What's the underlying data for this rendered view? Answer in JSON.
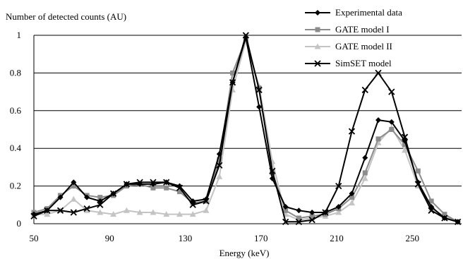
{
  "chart_data": {
    "type": "line",
    "title": "",
    "ylabel": "Number of detected counts (AU)",
    "xlabel": "Energy (keV)",
    "xlim": [
      50,
      276
    ],
    "ylim": [
      0,
      1
    ],
    "xticks": [
      {
        "value": 50,
        "label": "50"
      },
      {
        "value": 90,
        "label": "90"
      },
      {
        "value": 130,
        "label": "130"
      },
      {
        "value": 170,
        "label": "170"
      },
      {
        "value": 210,
        "label": "210"
      },
      {
        "value": 250,
        "label": "250"
      }
    ],
    "yticks": [
      {
        "value": 0,
        "label": "0"
      },
      {
        "value": 0.2,
        "label": "0.2"
      },
      {
        "value": 0.4,
        "label": "0.4"
      },
      {
        "value": 0.6,
        "label": "0.6"
      },
      {
        "value": 0.8,
        "label": "0.8"
      },
      {
        "value": 1,
        "label": "1"
      }
    ],
    "grid": "horizontal",
    "legend_position": "top-right",
    "series": [
      {
        "name": "Experimental data",
        "color": "#000000",
        "marker": "diamond",
        "stroke_width": 2,
        "x": [
          50,
          57,
          64,
          71,
          78,
          85,
          92,
          99,
          106,
          113,
          120,
          127,
          134,
          141,
          148,
          155,
          162,
          169,
          176,
          183,
          190,
          197,
          204,
          211,
          218,
          225,
          232,
          239,
          246,
          253,
          260,
          267,
          274
        ],
        "y": [
          0.05,
          0.07,
          0.14,
          0.22,
          0.14,
          0.12,
          0.16,
          0.21,
          0.21,
          0.21,
          0.22,
          0.2,
          0.12,
          0.13,
          0.37,
          0.75,
          0.99,
          0.62,
          0.24,
          0.09,
          0.07,
          0.06,
          0.06,
          0.09,
          0.16,
          0.35,
          0.55,
          0.54,
          0.44,
          0.22,
          0.09,
          0.03,
          0.01
        ]
      },
      {
        "name": "GATE model I",
        "color": "#8c8c8c",
        "marker": "square",
        "stroke_width": 2,
        "x": [
          50,
          57,
          64,
          71,
          78,
          85,
          92,
          99,
          106,
          113,
          120,
          127,
          134,
          141,
          148,
          155,
          162,
          169,
          176,
          183,
          190,
          197,
          204,
          211,
          218,
          225,
          232,
          239,
          246,
          253,
          260,
          267,
          274
        ],
        "y": [
          0.06,
          0.08,
          0.15,
          0.2,
          0.15,
          0.14,
          0.15,
          0.2,
          0.21,
          0.19,
          0.19,
          0.17,
          0.11,
          0.12,
          0.34,
          0.8,
          0.98,
          0.72,
          0.27,
          0.07,
          0.03,
          0.04,
          0.05,
          0.08,
          0.14,
          0.27,
          0.45,
          0.5,
          0.42,
          0.28,
          0.12,
          0.05,
          0.01
        ]
      },
      {
        "name": "GATE model II",
        "color": "#c4c4c4",
        "marker": "triangle",
        "stroke_width": 2,
        "x": [
          50,
          57,
          64,
          71,
          78,
          85,
          92,
          99,
          106,
          113,
          120,
          127,
          134,
          141,
          148,
          155,
          162,
          169,
          176,
          183,
          190,
          197,
          204,
          211,
          218,
          225,
          232,
          239,
          246,
          253,
          260,
          267,
          274
        ],
        "y": [
          0.05,
          0.05,
          0.07,
          0.13,
          0.07,
          0.06,
          0.05,
          0.07,
          0.06,
          0.06,
          0.05,
          0.05,
          0.05,
          0.07,
          0.25,
          0.71,
          0.97,
          0.73,
          0.33,
          0.05,
          0.02,
          0.03,
          0.04,
          0.06,
          0.11,
          0.24,
          0.43,
          0.51,
          0.39,
          0.2,
          0.08,
          0.04,
          0.01
        ]
      },
      {
        "name": "SimSET model",
        "color": "#000000",
        "marker": "x",
        "stroke_width": 2,
        "x": [
          50,
          57,
          64,
          71,
          78,
          85,
          92,
          99,
          106,
          113,
          120,
          127,
          134,
          141,
          148,
          155,
          162,
          169,
          176,
          183,
          190,
          197,
          204,
          211,
          218,
          225,
          232,
          239,
          246,
          253,
          260,
          267,
          274
        ],
        "y": [
          0.04,
          0.07,
          0.07,
          0.06,
          0.08,
          0.1,
          0.16,
          0.21,
          0.22,
          0.22,
          0.22,
          0.19,
          0.1,
          0.12,
          0.31,
          0.75,
          1.0,
          0.71,
          0.28,
          0.01,
          0.01,
          0.02,
          0.06,
          0.2,
          0.49,
          0.71,
          0.8,
          0.7,
          0.46,
          0.21,
          0.07,
          0.03,
          0.01
        ]
      }
    ]
  }
}
